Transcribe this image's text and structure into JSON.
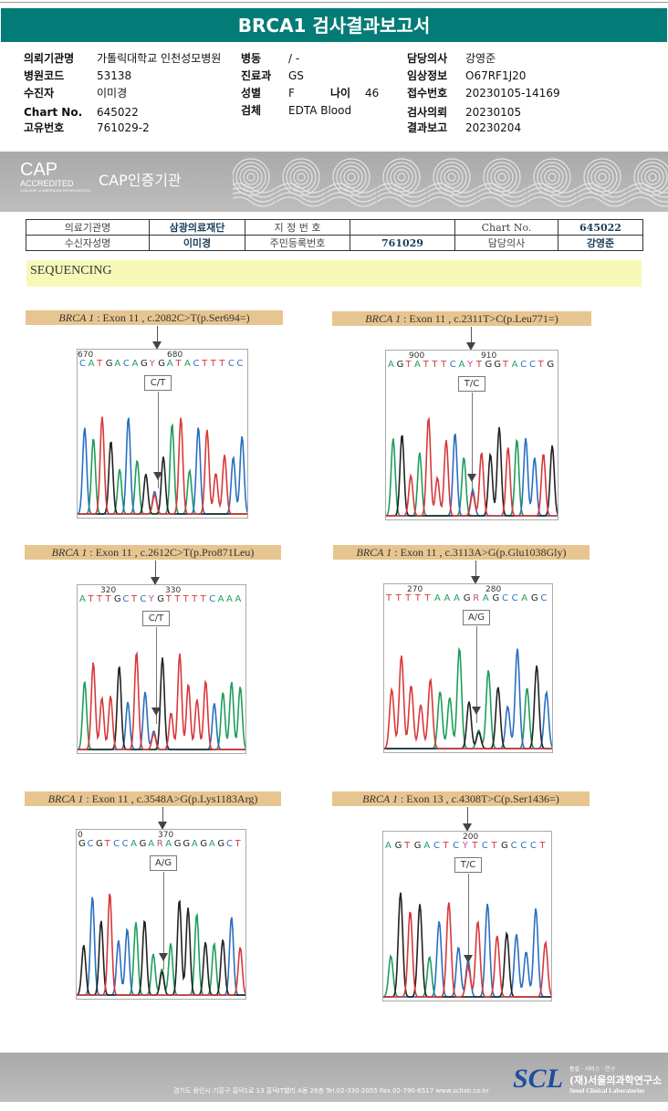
{
  "title": "BRCA1 검사결과보고서",
  "info": {
    "left": [
      {
        "k": "의뢰기관명",
        "v": "가톨릭대학교 인천성모병원"
      },
      {
        "k": "병원코드",
        "v": "53138"
      },
      {
        "k": "수진자",
        "v": "이미경"
      },
      {
        "k": "Chart No.",
        "v": "645022"
      },
      {
        "k": "고유번호",
        "v": "761029-2"
      }
    ],
    "mid": [
      {
        "k": "병동",
        "v": "/ -"
      },
      {
        "k": "진료과",
        "v": "GS"
      },
      {
        "k": "성별",
        "v": "F"
      },
      {
        "k": "검체",
        "v": "EDTA Blood"
      }
    ],
    "age": {
      "k": "나이",
      "v": "46"
    },
    "right": [
      {
        "k": "담당의사",
        "v": "강영준"
      },
      {
        "k": "임상정보",
        "v": "O67RF1J20"
      },
      {
        "k": "접수번호",
        "v": "20230105-14169"
      },
      {
        "k": "검사의뢰",
        "v": "20230105"
      },
      {
        "k": "결과보고",
        "v": "20230204"
      }
    ]
  },
  "cap": {
    "logo": "CAP",
    "accredited": "ACCREDITED",
    "college": "COLLEGE of AMERICAN PATHOLOGISTS",
    "label": "CAP인증기관"
  },
  "report_table": {
    "r1": [
      "의료기관명",
      "삼광의료재단",
      "지 정 번 호",
      "",
      "Chart No.",
      "645022"
    ],
    "r2": [
      "수신자성명",
      "이미경",
      "주민등록번호",
      "761029",
      "담당의사",
      "강영준"
    ]
  },
  "section": "SEQUENCING",
  "panels": [
    {
      "gene": "BRCA 1",
      "desc": " : Exon 11 , c.2082C>T(p.Ser694=)",
      "n1": "670",
      "n2": "680",
      "seq": "CATGACAGYGATACTTTCC",
      "call": "C/T"
    },
    {
      "gene": "BRCA 1",
      "desc": " : Exon 11 , c.2311T>C(p.Leu771=)",
      "n1": "900",
      "n2": "910",
      "seq": "AGTATTTCAYTGGTACCTG",
      "call": "T/C"
    },
    {
      "gene": "BRCA 1",
      "desc": " : Exon 11 , c.2612C>T(p.Pro871Leu)",
      "n1": "320",
      "n2": "330",
      "seq": "ATTTGCTCYGTTTTTCAAA",
      "call": "C/T"
    },
    {
      "gene": "BRCA 1",
      "desc": " : Exon 11 , c.3113A>G(p.Glu1038Gly)",
      "n1": "270",
      "n2": "280",
      "seq": "TTTTTAAAGRAGCCAGC",
      "call": "A/G"
    },
    {
      "gene": "BRCA 1",
      "desc": " : Exon 11 , c.3548A>G(p.Lys1183Arg)",
      "n1": "0",
      "n2": "370",
      "seq": "GCGTCCAGARAGGAGAGCT",
      "call": "A/G"
    },
    {
      "gene": "BRCA 1",
      "desc": " : Exon 13 , c.4308T>C(p.Ser1436=)",
      "n1": "",
      "n2": "200",
      "seq": "AGTGACTCYTCTGCCCT",
      "call": "T/C"
    }
  ],
  "base_colors": {
    "A": "#1f9e5a",
    "C": "#2a6fc0",
    "G": "#222222",
    "T": "#d9383a",
    "Y": "#c0508a",
    "R": "#c0508a"
  },
  "footer": {
    "address": "경기도 용인시 기흥구 흥덕1로 13 흥덕IT밸리 A동 26층  Tel.02-330-2055  Fax.02-790-6517  www.scllab.co.kr",
    "logo": "SCL",
    "slogan": "품질 · 서비스 · 연구",
    "org_ko": "(재)서울의과학연구소",
    "org_en": "Seoul Clinical Laboratories"
  }
}
